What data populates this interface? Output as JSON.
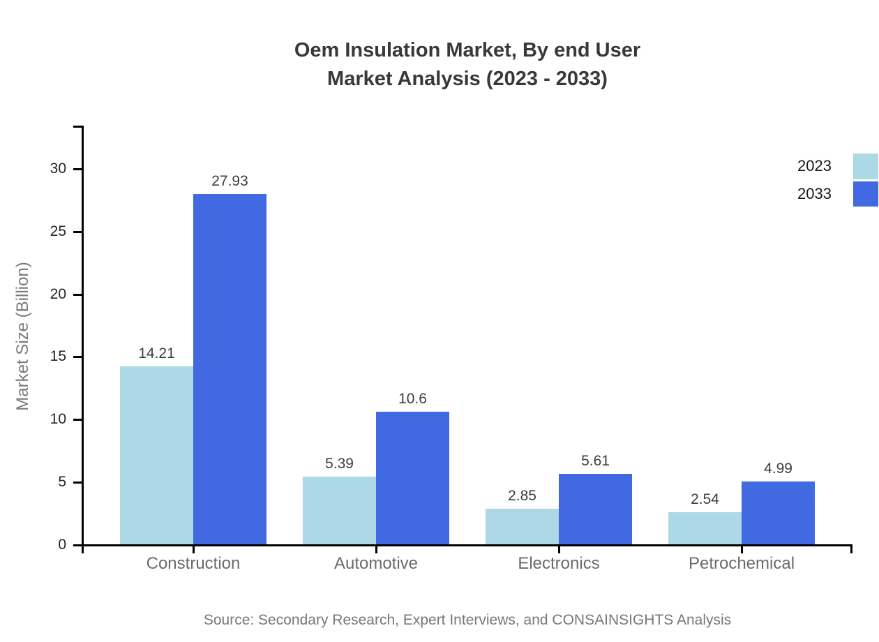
{
  "title": {
    "line1": "Oem Insulation Market, By end User",
    "line2": "Market Analysis (2023 - 2033)"
  },
  "chart_data": {
    "type": "bar",
    "title": "Oem Insulation Market, By end User Market Analysis (2023 - 2033)",
    "categories": [
      "Construction",
      "Automotive",
      "Electronics",
      "Petrochemical"
    ],
    "series": [
      {
        "name": "2023",
        "color": "#ADD8E6",
        "values": [
          14.21,
          5.39,
          2.85,
          2.54
        ]
      },
      {
        "name": "2033",
        "color": "#4169E1",
        "values": [
          27.93,
          10.6,
          5.61,
          4.99
        ]
      }
    ],
    "value_labels": {
      "2023": [
        "14.21",
        "5.39",
        "2.85",
        "2.54"
      ],
      "2033": [
        "27.93",
        "10.6",
        "5.61",
        "4.99"
      ]
    },
    "xlabel": "",
    "ylabel": "Market Size (Billion)",
    "yticks": [
      0,
      5,
      10,
      15,
      20,
      25,
      30
    ],
    "ylim": [
      0,
      33.5
    ],
    "grid": false,
    "legend_position": "upper-right, outside plot area, flush with right edge"
  },
  "source": "Source: Secondary Research, Expert Interviews, and CONSAINSIGHTS Analysis",
  "colors": {
    "background": "#ffffff",
    "series_2023": "#ADD8E6",
    "series_2033": "#4169E1",
    "axis": "#000000",
    "title_text": "#383838",
    "y_tick_label": "#262626",
    "category_label": "#6b6b6b",
    "value_label": "#3d3d3d",
    "axis_label": "#7a7a7a",
    "source_text": "#777777",
    "legend_label": "#1a1a1a"
  }
}
